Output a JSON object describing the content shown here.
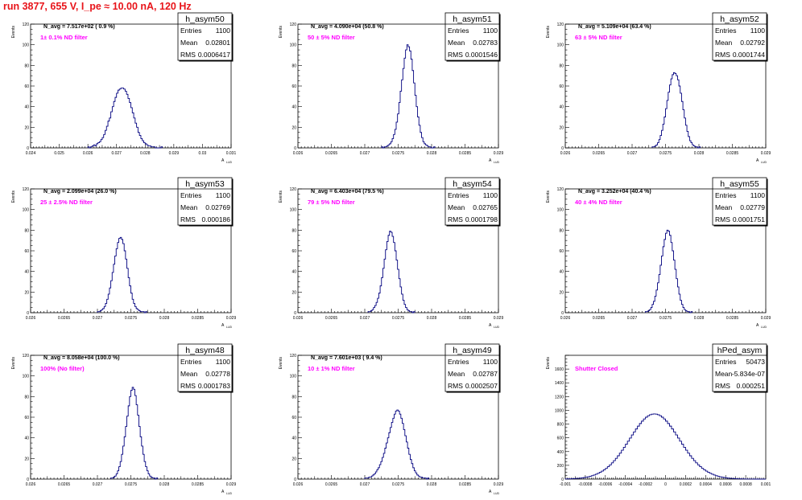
{
  "header": {
    "run_title": "run 3877,   655 V, I_pe ≈ 10.00 nA, 120 Hz"
  },
  "colors": {
    "histogram_line": "#00007f",
    "title_text": "#e8141a",
    "filter_text": "#ff00ff",
    "axis": "#000000"
  },
  "stats_labels": {
    "entries": "Entries",
    "mean": "Mean",
    "rms": "RMS"
  },
  "chart_data": [
    {
      "type": "histogram",
      "name": "h_asym50",
      "xlim": [
        0.024,
        0.031
      ],
      "xticks": [
        "0.024",
        "0.025",
        "0.026",
        "0.027",
        "0.028",
        "0.029",
        "0.03",
        "0.031"
      ],
      "ylim": [
        0,
        120
      ],
      "yticks": [
        "0",
        "20",
        "40",
        "60",
        "80",
        "100",
        "120"
      ],
      "ylabel": "Events",
      "xlabel": "A",
      "stats": {
        "entries": "1100",
        "mean": "0.02801",
        "rms": "0.0006417"
      },
      "navg": "N_avg = 7.517e+02 ( 0.9 %)",
      "filter": "1± 0.1% ND filter",
      "bins": {
        "lo": 0.026,
        "width": 5e-05,
        "counts": [
          1,
          0,
          1,
          2,
          3,
          2,
          4,
          5,
          6,
          8,
          10,
          13,
          17,
          21,
          26,
          29,
          35,
          40,
          45,
          49,
          53,
          56,
          57,
          58,
          58,
          57,
          55,
          52,
          48,
          44,
          39,
          34,
          29,
          24,
          20,
          15,
          12,
          9,
          7,
          5,
          4,
          3,
          2,
          2,
          1,
          1,
          1,
          0,
          0,
          0,
          0,
          1
        ]
      }
    },
    {
      "type": "histogram",
      "name": "h_asym51",
      "xlim": [
        0.026,
        0.029
      ],
      "xticks": [
        "0.026",
        "0.0265",
        "0.027",
        "0.0275",
        "0.028",
        "0.0285",
        "0.029"
      ],
      "ylim": [
        0,
        120
      ],
      "yticks": [
        "0",
        "20",
        "40",
        "60",
        "80",
        "100",
        "120"
      ],
      "ylabel": "Events",
      "xlabel": "A",
      "stats": {
        "entries": "1100",
        "mean": "0.02783",
        "rms": "0.0001546"
      },
      "navg": "N_avg = 4.090e+04 (50.8 %)",
      "filter": "50 ± 5% ND filter",
      "bins": {
        "lo": 0.02725,
        "width": 2e-05,
        "counts": [
          1,
          0,
          1,
          1,
          2,
          3,
          4,
          6,
          9,
          13,
          18,
          25,
          33,
          44,
          55,
          66,
          77,
          87,
          95,
          100,
          98,
          94,
          86,
          75,
          63,
          51,
          40,
          30,
          22,
          15,
          10,
          6,
          4,
          3,
          2,
          1,
          1,
          0,
          0,
          1
        ]
      }
    },
    {
      "type": "histogram",
      "name": "h_asym52",
      "xlim": [
        0.026,
        0.029
      ],
      "xticks": [
        "0.026",
        "0.0265",
        "0.027",
        "0.0275",
        "0.028",
        "0.0285",
        "0.029"
      ],
      "ylim": [
        0,
        120
      ],
      "yticks": [
        "0",
        "20",
        "40",
        "60",
        "80",
        "100",
        "120"
      ],
      "ylabel": "Events",
      "xlabel": "A",
      "stats": {
        "entries": "1100",
        "mean": "0.02792",
        "rms": "0.0001744"
      },
      "navg": "N_avg = 5.109e+04 (63.4 %)",
      "filter": "63 ± 5% ND filter",
      "bins": {
        "lo": 0.0273,
        "width": 2e-05,
        "counts": [
          1,
          1,
          2,
          3,
          5,
          8,
          12,
          17,
          23,
          30,
          38,
          46,
          54,
          61,
          67,
          71,
          73,
          72,
          70,
          66,
          60,
          53,
          45,
          37,
          29,
          22,
          16,
          11,
          7,
          5,
          3,
          2,
          1,
          1,
          0,
          1
        ]
      }
    },
    {
      "type": "histogram",
      "name": "h_asym53",
      "xlim": [
        0.026,
        0.029
      ],
      "xticks": [
        "0.026",
        "0.0265",
        "0.027",
        "0.0275",
        "0.028",
        "0.0285",
        "0.029"
      ],
      "ylim": [
        0,
        120
      ],
      "yticks": [
        "0",
        "20",
        "40",
        "60",
        "80",
        "100",
        "120"
      ],
      "ylabel": "Events",
      "xlabel": "A",
      "stats": {
        "entries": "1100",
        "mean": "0.02769",
        "rms": "0.000186"
      },
      "navg": "N_avg = 2.099e+04 (26.0 %)",
      "filter": "25 ± 2.5% ND filter",
      "bins": {
        "lo": 0.027,
        "width": 2e-05,
        "counts": [
          1,
          1,
          2,
          3,
          4,
          6,
          9,
          13,
          18,
          24,
          31,
          39,
          47,
          55,
          62,
          68,
          72,
          73,
          71,
          67,
          60,
          52,
          43,
          34,
          26,
          19,
          13,
          9,
          6,
          4,
          3,
          2,
          1,
          1,
          1,
          0,
          1
        ]
      }
    },
    {
      "type": "histogram",
      "name": "h_asym54",
      "xlim": [
        0.026,
        0.029
      ],
      "xticks": [
        "0.026",
        "0.0265",
        "0.027",
        "0.0275",
        "0.028",
        "0.0285",
        "0.029"
      ],
      "ylim": [
        0,
        120
      ],
      "yticks": [
        "0",
        "20",
        "40",
        "60",
        "80",
        "100",
        "120"
      ],
      "ylabel": "Events",
      "xlabel": "A",
      "stats": {
        "entries": "1100",
        "mean": "0.02765",
        "rms": "0.0001798"
      },
      "navg": "N_avg = 6.403e+04 (79.5 %)",
      "filter": "79 ± 5% ND filter",
      "bins": {
        "lo": 0.02705,
        "width": 2e-05,
        "counts": [
          1,
          1,
          2,
          3,
          5,
          7,
          10,
          14,
          19,
          26,
          34,
          43,
          52,
          61,
          69,
          75,
          79,
          78,
          74,
          68,
          60,
          51,
          42,
          33,
          25,
          18,
          12,
          8,
          5,
          3,
          2,
          1,
          1,
          0,
          1
        ]
      }
    },
    {
      "type": "histogram",
      "name": "h_asym55",
      "xlim": [
        0.026,
        0.029
      ],
      "xticks": [
        "0.026",
        "0.0265",
        "0.027",
        "0.0275",
        "0.028",
        "0.0285",
        "0.029"
      ],
      "ylim": [
        0,
        120
      ],
      "yticks": [
        "0",
        "20",
        "40",
        "60",
        "80",
        "100",
        "120"
      ],
      "ylabel": "Events",
      "xlabel": "A",
      "stats": {
        "entries": "1100",
        "mean": "0.02779",
        "rms": "0.0001751"
      },
      "navg": "N_avg = 3.252e+04 (40.4 %)",
      "filter": "40 ± 4% ND filter",
      "bins": {
        "lo": 0.0272,
        "width": 2e-05,
        "counts": [
          1,
          1,
          2,
          3,
          5,
          8,
          11,
          16,
          22,
          29,
          37,
          46,
          55,
          64,
          71,
          77,
          80,
          79,
          75,
          68,
          60,
          51,
          42,
          33,
          25,
          18,
          12,
          8,
          5,
          3,
          2,
          1,
          1,
          0,
          1
        ]
      }
    },
    {
      "type": "histogram",
      "name": "h_asym48",
      "xlim": [
        0.026,
        0.029
      ],
      "xticks": [
        "0.026",
        "0.0265",
        "0.027",
        "0.0275",
        "0.028",
        "0.0285",
        "0.029"
      ],
      "ylim": [
        0,
        120
      ],
      "yticks": [
        "0",
        "20",
        "40",
        "60",
        "80",
        "100",
        "120"
      ],
      "ylabel": "Events",
      "xlabel": "A",
      "stats": {
        "entries": "1100",
        "mean": "0.02778",
        "rms": "0.0001783"
      },
      "navg": "N_avg = 8.058e+04 (100.0 %)",
      "filter": "100% (No filter)",
      "bins": {
        "lo": 0.0272,
        "width": 2e-05,
        "counts": [
          1,
          1,
          2,
          3,
          5,
          8,
          12,
          17,
          24,
          32,
          41,
          51,
          61,
          71,
          80,
          86,
          89,
          87,
          81,
          72,
          62,
          51,
          41,
          32,
          24,
          17,
          12,
          8,
          5,
          3,
          2,
          1,
          1,
          0,
          1
        ]
      }
    },
    {
      "type": "histogram",
      "name": "h_asym49",
      "xlim": [
        0.026,
        0.029
      ],
      "xticks": [
        "0.026",
        "0.0265",
        "0.027",
        "0.0275",
        "0.028",
        "0.0285",
        "0.029"
      ],
      "ylim": [
        0,
        120
      ],
      "yticks": [
        "0",
        "20",
        "40",
        "60",
        "80",
        "100",
        "120"
      ],
      "ylabel": "Events",
      "xlabel": "A",
      "stats": {
        "entries": "1100",
        "mean": "0.02787",
        "rms": "0.0002507"
      },
      "navg": "N_avg = 7.601e+03 ( 9.4 %)",
      "filter": "10 ± 1% ND filter",
      "bins": {
        "lo": 0.027,
        "width": 2e-05,
        "counts": [
          1,
          1,
          1,
          2,
          2,
          3,
          4,
          5,
          7,
          9,
          11,
          14,
          17,
          21,
          25,
          30,
          35,
          40,
          45,
          50,
          55,
          59,
          63,
          66,
          67,
          66,
          63,
          59,
          54,
          48,
          42,
          36,
          30,
          24,
          19,
          15,
          11,
          8,
          6,
          4,
          3,
          2,
          2,
          1,
          1,
          1,
          0,
          1
        ]
      }
    },
    {
      "type": "histogram",
      "name": "hPed_asym",
      "xlim": [
        -0.001,
        0.001
      ],
      "xticks": [
        "-0.001",
        "-0.0008",
        "-0.0006",
        "-0.0004",
        "-0.0002",
        "0",
        "0.0002",
        "0.0004",
        "0.0006",
        "0.0008",
        "0.001"
      ],
      "ylim": [
        0,
        1800
      ],
      "yticks": [
        "0",
        "200",
        "400",
        "600",
        "800",
        "1000",
        "1200",
        "1400",
        "1600"
      ],
      "ylabel": "Events",
      "xlabel": "",
      "stats": {
        "entries": "50473",
        "mean": "-5.834e-07",
        "rms": "0.000251"
      },
      "navg": "",
      "filter": "Shutter Closed",
      "bins": {
        "lo": -0.001,
        "width": 2e-05,
        "counts": [
          2,
          3,
          4,
          5,
          7,
          9,
          11,
          14,
          18,
          22,
          27,
          33,
          40,
          49,
          59,
          71,
          84,
          99,
          116,
          135,
          156,
          180,
          207,
          236,
          268,
          302,
          339,
          378,
          420,
          463,
          507,
          552,
          597,
          642,
          686,
          729,
          770,
          808,
          843,
          874,
          900,
          921,
          936,
          945,
          948,
          945,
          936,
          921,
          900,
          874,
          843,
          808,
          770,
          729,
          686,
          642,
          597,
          552,
          507,
          463,
          420,
          378,
          339,
          302,
          268,
          236,
          207,
          180,
          156,
          135,
          116,
          99,
          84,
          71,
          59,
          49,
          40,
          33,
          27,
          22,
          18,
          14,
          11,
          9,
          7,
          5,
          4,
          3,
          2,
          2,
          1,
          1,
          1,
          1,
          0,
          0,
          0,
          0,
          0,
          0
        ]
      }
    }
  ]
}
